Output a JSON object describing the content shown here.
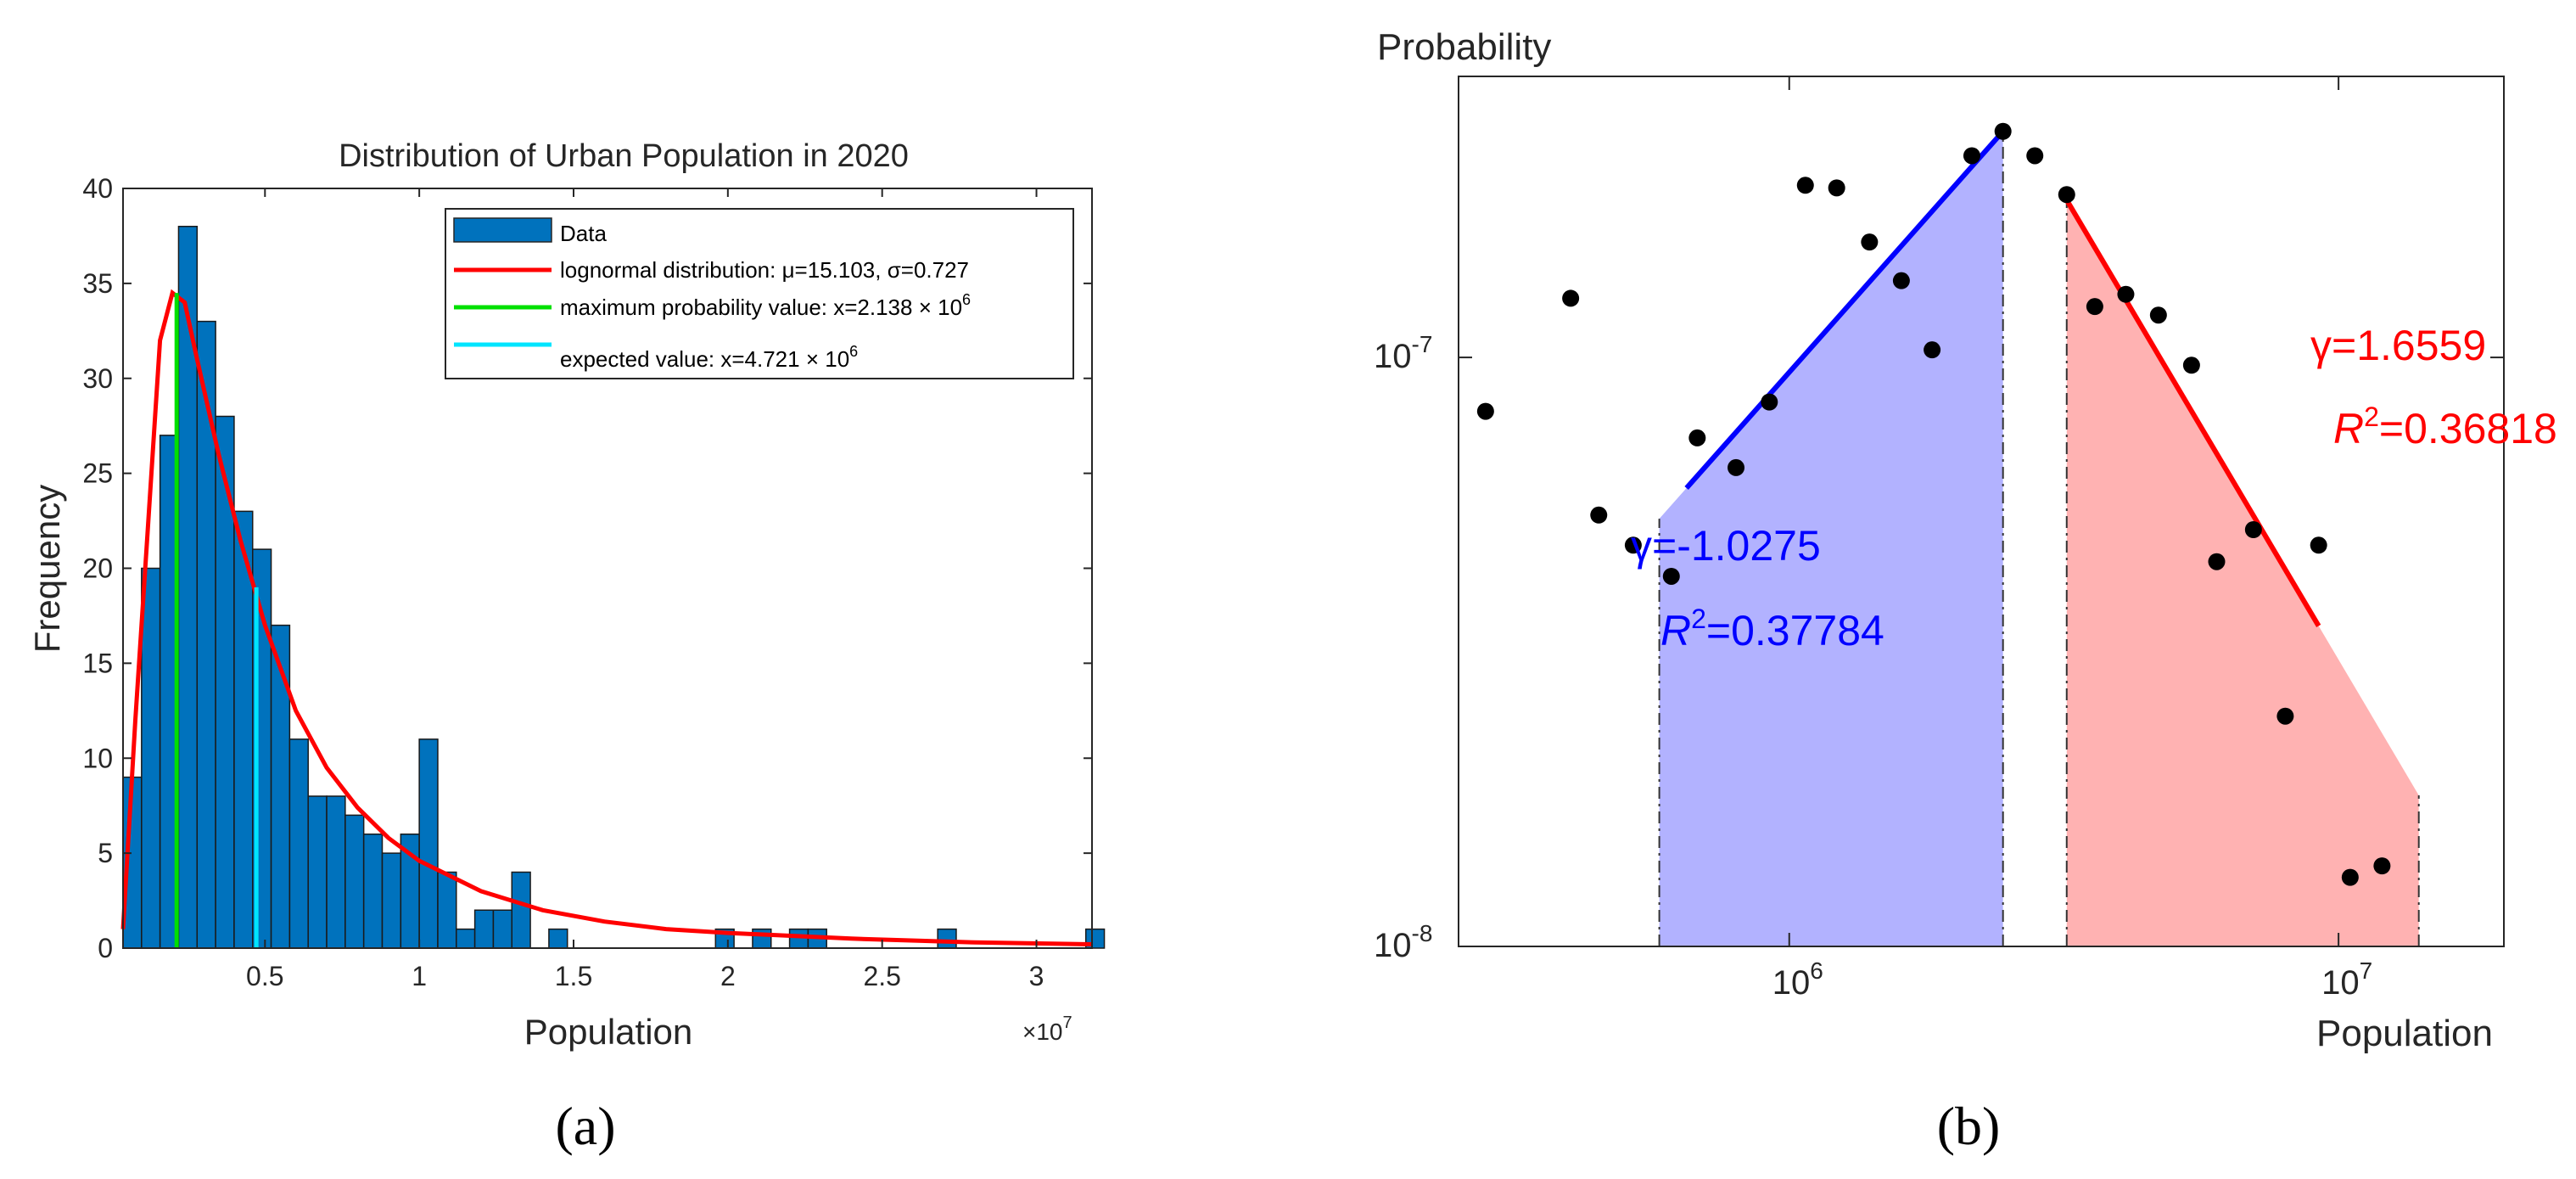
{
  "captions": {
    "a": "(a)",
    "b": "(b)"
  },
  "chart_data": [
    {
      "type": "bar",
      "panel": "(a)",
      "title": "Distribution of Urban Population in 2020",
      "xlabel": "Population",
      "xlabel_multiplier": "×10",
      "xlabel_multiplier_exp": "7",
      "ylabel": "Frequency",
      "xlim": [
        0.04,
        3.18
      ],
      "ylim": [
        0,
        40
      ],
      "x_units": "×10^7",
      "xticks": [
        0.5,
        1,
        1.5,
        2,
        2.5,
        3
      ],
      "xtick_labels": [
        "0.5",
        "1",
        "1.5",
        "2",
        "2.5",
        "3"
      ],
      "yticks": [
        0,
        5,
        10,
        15,
        20,
        25,
        30,
        35,
        40
      ],
      "ytick_labels": [
        "0",
        "5",
        "10",
        "15",
        "20",
        "25",
        "30",
        "35",
        "40"
      ],
      "bins": {
        "start": 0.04,
        "width": 0.06
      },
      "counts": [
        9,
        20,
        27,
        38,
        33,
        28,
        23,
        21,
        17,
        11,
        8,
        8,
        7,
        6,
        5,
        6,
        11,
        4,
        1,
        2,
        2,
        4,
        0,
        1,
        0,
        0,
        0,
        0,
        0,
        0,
        0,
        0,
        1,
        0,
        1,
        0,
        1,
        1,
        0,
        0,
        0,
        0,
        0,
        0,
        1,
        0,
        0,
        0,
        0,
        0,
        0,
        0,
        1
      ],
      "bar_color": "#0072BD",
      "lognormal_curve": {
        "x": [
          0.04,
          0.08,
          0.12,
          0.16,
          0.2,
          0.24,
          0.28,
          0.35,
          0.42,
          0.5,
          0.6,
          0.7,
          0.8,
          0.9,
          1.0,
          1.2,
          1.4,
          1.6,
          1.8,
          2.0,
          2.4,
          2.8,
          3.18
        ],
        "y": [
          1,
          12,
          22,
          32,
          34.5,
          34,
          31,
          26,
          21.5,
          17,
          12.5,
          9.5,
          7.4,
          5.8,
          4.6,
          3.0,
          2.0,
          1.4,
          1.0,
          0.8,
          0.5,
          0.3,
          0.2
        ],
        "color": "#FF0000"
      },
      "max_prob_line": {
        "x": 0.2138,
        "y": 34.5,
        "color": "#00E000"
      },
      "expected_line": {
        "x": 0.4721,
        "y": 19,
        "color": "#00E5FF"
      },
      "legend": {
        "placement": "top-right",
        "entries": [
          {
            "label": "Data",
            "color": "#0072BD",
            "kind": "patch"
          },
          {
            "label": "lognormal distribution: μ=15.103, σ=0.727",
            "color": "#FF0000",
            "kind": "line"
          },
          {
            "label": "maximum probability value: x=2.138 × 10",
            "sup": "6",
            "color": "#00E000",
            "kind": "line"
          },
          {
            "label": "expected value: x=4.721 × 10",
            "sup": "6",
            "color": "#00E5FF",
            "kind": "line"
          }
        ]
      }
    },
    {
      "type": "scatter",
      "panel": "(b)",
      "scale": "log-log",
      "xlabel": "Population",
      "ylabel": "Probability",
      "xlim": [
        250000,
        20000000
      ],
      "ylim": [
        1e-08,
        3e-07
      ],
      "xtick_labels": [
        {
          "value": 1000000,
          "base": "10",
          "exp": "6"
        },
        {
          "value": 10000000,
          "base": "10",
          "exp": "7"
        }
      ],
      "ytick_labels": [
        {
          "value": 1e-08,
          "base": "10",
          "exp": "-8"
        },
        {
          "value": 1e-07,
          "base": "10",
          "exp": "-7"
        }
      ],
      "points": [
        [
          280000,
          8.1e-08
        ],
        [
          400000,
          1.26e-07
        ],
        [
          450000,
          5.4e-08
        ],
        [
          520000,
          4.8e-08
        ],
        [
          610000,
          4.25e-08
        ],
        [
          680000,
          7.3e-08
        ],
        [
          800000,
          6.5e-08
        ],
        [
          920000,
          8.4e-08
        ],
        [
          1070000,
          1.96e-07
        ],
        [
          1220000,
          1.94e-07
        ],
        [
          1400000,
          1.57e-07
        ],
        [
          1600000,
          1.35e-07
        ],
        [
          1820000,
          1.03e-07
        ],
        [
          2150000,
          2.2e-07
        ],
        [
          2450000,
          2.42e-07
        ],
        [
          2800000,
          2.2e-07
        ],
        [
          3200000,
          1.89e-07
        ],
        [
          3600000,
          1.22e-07
        ],
        [
          4100000,
          1.28e-07
        ],
        [
          4700000,
          1.18e-07
        ],
        [
          5400000,
          9.7e-08
        ],
        [
          6000000,
          4.5e-08
        ],
        [
          7000000,
          5.1e-08
        ],
        [
          8000000,
          2.46e-08
        ],
        [
          9200000,
          4.8e-08
        ],
        [
          10500000,
          1.31e-08
        ],
        [
          12000000,
          1.37e-08
        ]
      ],
      "left_fit": {
        "gamma_label": "γ=-1.0275",
        "r2_prefix": "R",
        "r2_exp": "2",
        "r2_value": "=0.37784",
        "x": [
          650000,
          2450000
        ],
        "y": [
          6e-08,
          2.42e-07
        ],
        "color": "#0000FF",
        "fill": "#B2B2FF",
        "region_x": [
          580000,
          2450000
        ]
      },
      "right_fit": {
        "gamma_label": "γ=1.6559",
        "r2_prefix": "R",
        "r2_exp": "2",
        "r2_value": "=0.36818",
        "x": [
          3200000,
          9200000
        ],
        "y": [
          1.85e-07,
          3.5e-08
        ],
        "color": "#FF0000",
        "fill": "#FFB2B2",
        "region_x": [
          3200000,
          14000000
        ]
      }
    }
  ]
}
